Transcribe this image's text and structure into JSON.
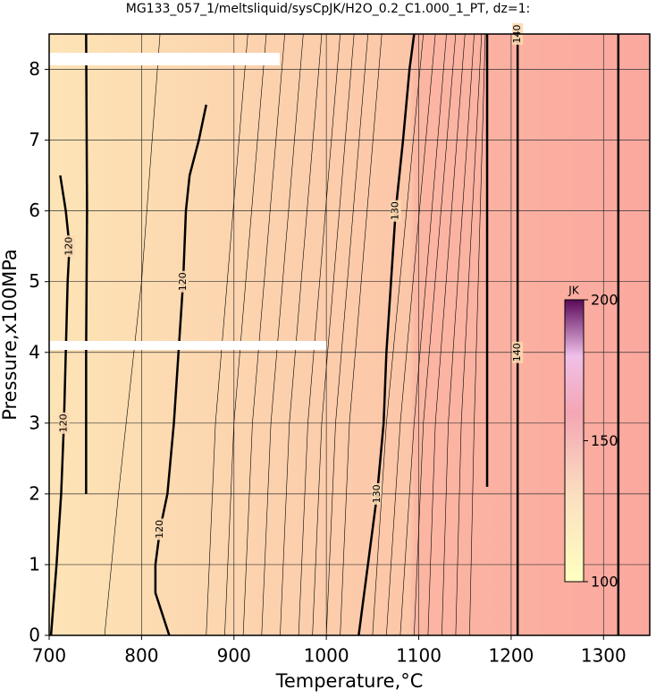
{
  "chart_data": {
    "type": "contour",
    "title": "MG133_057_1/meltsliquid/sysCpJK/H2O_0.2_C1.000_1_PT, dz=1:",
    "x_label": "Temperature,°C",
    "y_label": "Pressure,x100MPa",
    "xlim": [
      700,
      1350
    ],
    "ylim": [
      0,
      8.5
    ],
    "xticks": [
      700,
      800,
      900,
      1000,
      1100,
      1200,
      1300
    ],
    "yticks": [
      0,
      1,
      2,
      3,
      4,
      5,
      6,
      7,
      8
    ],
    "grid": true,
    "colorbar": {
      "label": "JK",
      "lim": [
        100,
        200
      ],
      "ticks": [
        100,
        150,
        200
      ]
    },
    "contours": [
      {
        "level": 120,
        "bold": true,
        "x": [
          702,
          708,
          713,
          716,
          718,
          720,
          722,
          718,
          712
        ],
        "y": [
          0,
          1,
          2,
          3,
          4,
          5,
          5.5,
          6,
          6.5
        ]
      },
      {
        "level": 120,
        "bold": true,
        "x": [
          830,
          825,
          815,
          815,
          820,
          828,
          835,
          840,
          845,
          848,
          852,
          862,
          870
        ],
        "y": [
          0,
          0.2,
          0.6,
          1,
          1.5,
          2,
          3,
          4,
          5,
          6,
          6.5,
          7,
          7.5
        ]
      },
      {
        "level": 130,
        "bold": true,
        "x": [
          1035,
          1040,
          1050,
          1055,
          1062,
          1065,
          1070,
          1075,
          1083,
          1090,
          1095
        ],
        "y": [
          0,
          0.5,
          1.5,
          2,
          3,
          4,
          5,
          6,
          7,
          8,
          8.5
        ]
      },
      {
        "level": 140,
        "bold": true,
        "x": [
          1207,
          1207,
          1207
        ],
        "y": [
          0,
          4,
          8.5
        ]
      },
      {
        "bold": true,
        "x": [
          1174,
          1174,
          1174
        ],
        "y": [
          2.1,
          5,
          8.5
        ]
      },
      {
        "bold": true,
        "x": [
          1316,
          1316,
          1316
        ],
        "y": [
          0,
          4,
          8.5
        ]
      },
      {
        "bold": true,
        "x": [
          740,
          740,
          741,
          740
        ],
        "y": [
          2,
          4,
          6,
          8.5
        ]
      },
      {
        "bold": false,
        "x": [
          870,
          880,
          915
        ],
        "y": [
          0,
          3,
          8.5
        ]
      },
      {
        "bold": false,
        "x": [
          890,
          900,
          935
        ],
        "y": [
          0,
          3,
          8.5
        ]
      },
      {
        "bold": false,
        "x": [
          910,
          920,
          955
        ],
        "y": [
          0,
          3,
          8.5
        ]
      },
      {
        "bold": false,
        "x": [
          930,
          940,
          975
        ],
        "y": [
          0,
          3,
          8.5
        ]
      },
      {
        "bold": false,
        "x": [
          950,
          960,
          995
        ],
        "y": [
          0,
          3,
          8.5
        ]
      },
      {
        "bold": false,
        "x": [
          970,
          980,
          1015
        ],
        "y": [
          0,
          3,
          8.5
        ]
      },
      {
        "bold": false,
        "x": [
          985,
          995,
          1030
        ],
        "y": [
          0,
          3,
          8.5
        ]
      },
      {
        "bold": false,
        "x": [
          1000,
          1010,
          1045
        ],
        "y": [
          0,
          3,
          8.5
        ]
      },
      {
        "bold": false,
        "x": [
          1015,
          1025,
          1060
        ],
        "y": [
          0,
          3,
          8.5
        ]
      },
      {
        "bold": false,
        "x": [
          1050,
          1065,
          1105
        ],
        "y": [
          0,
          3,
          8.5
        ]
      },
      {
        "bold": false,
        "x": [
          1065,
          1080,
          1118
        ],
        "y": [
          0,
          3,
          8.5
        ]
      },
      {
        "bold": false,
        "x": [
          1080,
          1095,
          1130
        ],
        "y": [
          0,
          3,
          8.5
        ]
      },
      {
        "bold": false,
        "x": [
          1095,
          1105,
          1140
        ],
        "y": [
          0,
          3,
          8.5
        ]
      },
      {
        "bold": false,
        "x": [
          1110,
          1118,
          1150
        ],
        "y": [
          0,
          3,
          8.5
        ]
      },
      {
        "bold": false,
        "x": [
          1125,
          1132,
          1160
        ],
        "y": [
          0,
          3,
          8.5
        ]
      },
      {
        "bold": false,
        "x": [
          1140,
          1146,
          1168
        ],
        "y": [
          0,
          3,
          8.5
        ]
      },
      {
        "bold": false,
        "x": [
          1155,
          1160,
          1172
        ],
        "y": [
          0,
          3,
          8.5
        ]
      },
      {
        "bold": false,
        "x": [
          760,
          775,
          800,
          820
        ],
        "y": [
          0,
          2,
          5,
          8.5
        ]
      }
    ]
  }
}
